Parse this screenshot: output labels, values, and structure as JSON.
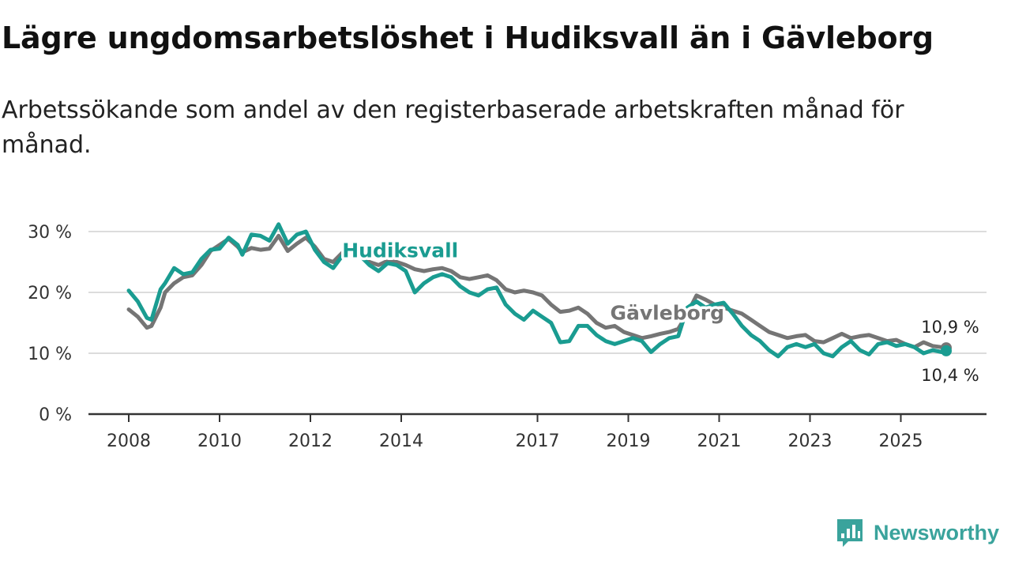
{
  "header": {
    "title": "Lägre ungdomsarbetslöshet i Hudiksvall än i Gävleborg",
    "subtitle": "Arbetssökande som andel av den registerbaserade arbetskraften månad för månad."
  },
  "brand": {
    "name": "Newsworthy",
    "color": "#3aa39c",
    "icon": "bar-chart-speech-bubble-icon"
  },
  "chart_data": {
    "type": "line",
    "title": "Lägre ungdomsarbetslöshet i Hudiksvall än i Gävleborg",
    "subtitle": "Arbetssökande som andel av den registerbaserade arbetskraften månad för månad.",
    "xlabel": "",
    "ylabel": "",
    "ylim": [
      0,
      30
    ],
    "yticks": [
      0,
      10,
      20,
      30
    ],
    "ytick_labels": [
      "0 %",
      "10 %",
      "20 %",
      "30 %"
    ],
    "xlim": [
      2008.0,
      2026.0
    ],
    "xticks": [
      2008,
      2010,
      2012,
      2014,
      2017,
      2019,
      2021,
      2023,
      2025
    ],
    "xtick_labels": [
      "2008",
      "2010",
      "2012",
      "2014",
      "2017",
      "2019",
      "2021",
      "2023",
      "2025"
    ],
    "grid": true,
    "legend": "inline",
    "series": [
      {
        "name": "Gävleborg",
        "color": "#757575",
        "label_at": [
          2018.6,
          15.5
        ],
        "x": [
          2008.0,
          2008.2,
          2008.4,
          2008.5,
          2008.7,
          2008.8,
          2009.0,
          2009.2,
          2009.4,
          2009.6,
          2009.8,
          2010.0,
          2010.2,
          2010.4,
          2010.5,
          2010.7,
          2010.9,
          2011.1,
          2011.3,
          2011.5,
          2011.7,
          2011.9,
          2012.1,
          2012.3,
          2012.5,
          2012.7,
          2012.9,
          2013.1,
          2013.3,
          2013.5,
          2013.7,
          2013.9,
          2014.1,
          2014.3,
          2014.5,
          2014.7,
          2014.9,
          2015.1,
          2015.3,
          2015.5,
          2015.7,
          2015.9,
          2016.1,
          2016.3,
          2016.5,
          2016.7,
          2016.9,
          2017.1,
          2017.3,
          2017.5,
          2017.7,
          2017.9,
          2018.1,
          2018.3,
          2018.5,
          2018.7,
          2018.9,
          2019.1,
          2019.3,
          2019.5,
          2019.7,
          2019.9,
          2020.1,
          2020.3,
          2020.5,
          2020.7,
          2020.9,
          2021.1,
          2021.3,
          2021.5,
          2021.7,
          2021.9,
          2022.1,
          2022.3,
          2022.5,
          2022.7,
          2022.9,
          2023.1,
          2023.3,
          2023.5,
          2023.7,
          2023.9,
          2024.1,
          2024.3,
          2024.5,
          2024.7,
          2024.9,
          2025.1,
          2025.3,
          2025.5,
          2025.7,
          2025.9,
          2026.0
        ],
        "values": [
          17.2,
          16.0,
          14.2,
          14.5,
          17.5,
          20.0,
          21.5,
          22.5,
          22.8,
          24.5,
          26.8,
          27.8,
          28.8,
          27.5,
          26.6,
          27.3,
          27.0,
          27.2,
          29.3,
          26.8,
          28.0,
          29.0,
          27.5,
          25.5,
          25.0,
          26.5,
          27.8,
          26.8,
          25.0,
          24.5,
          25.2,
          25.0,
          24.5,
          23.8,
          23.5,
          23.8,
          24.0,
          23.5,
          22.5,
          22.2,
          22.5,
          22.8,
          22.0,
          20.5,
          20.0,
          20.3,
          20.0,
          19.5,
          18.0,
          16.8,
          17.0,
          17.5,
          16.5,
          15.0,
          14.2,
          14.5,
          13.5,
          13.0,
          12.5,
          12.8,
          13.2,
          13.5,
          14.0,
          16.5,
          19.5,
          18.8,
          18.0,
          17.5,
          17.0,
          16.5,
          15.5,
          14.5,
          13.5,
          13.0,
          12.5,
          12.8,
          13.0,
          12.0,
          11.8,
          12.5,
          13.2,
          12.5,
          12.8,
          13.0,
          12.5,
          12.0,
          12.2,
          11.5,
          11.0,
          11.8,
          11.2,
          11.0,
          10.9
        ]
      },
      {
        "name": "Hudiksvall",
        "color": "#1a9c91",
        "label_at": [
          2012.7,
          25.8
        ],
        "x": [
          2008.0,
          2008.2,
          2008.4,
          2008.5,
          2008.7,
          2008.8,
          2009.0,
          2009.2,
          2009.4,
          2009.6,
          2009.8,
          2010.0,
          2010.2,
          2010.4,
          2010.5,
          2010.7,
          2010.9,
          2011.1,
          2011.3,
          2011.5,
          2011.7,
          2011.9,
          2012.1,
          2012.3,
          2012.5,
          2012.7,
          2012.9,
          2013.1,
          2013.3,
          2013.5,
          2013.7,
          2013.9,
          2014.1,
          2014.3,
          2014.5,
          2014.7,
          2014.9,
          2015.1,
          2015.3,
          2015.5,
          2015.7,
          2015.9,
          2016.1,
          2016.3,
          2016.5,
          2016.7,
          2016.9,
          2017.1,
          2017.3,
          2017.5,
          2017.7,
          2017.9,
          2018.1,
          2018.3,
          2018.5,
          2018.7,
          2018.9,
          2019.1,
          2019.3,
          2019.5,
          2019.7,
          2019.9,
          2020.1,
          2020.3,
          2020.5,
          2020.7,
          2020.9,
          2021.1,
          2021.3,
          2021.5,
          2021.7,
          2021.9,
          2022.1,
          2022.3,
          2022.5,
          2022.7,
          2022.9,
          2023.1,
          2023.3,
          2023.5,
          2023.7,
          2023.9,
          2024.1,
          2024.3,
          2024.5,
          2024.7,
          2024.9,
          2025.1,
          2025.3,
          2025.5,
          2025.7,
          2025.9,
          2026.0
        ],
        "values": [
          20.3,
          18.5,
          15.8,
          15.5,
          20.5,
          21.5,
          24.0,
          23.0,
          23.3,
          25.5,
          27.0,
          27.2,
          29.0,
          27.8,
          26.2,
          29.5,
          29.3,
          28.5,
          31.2,
          28.0,
          29.5,
          30.0,
          27.0,
          25.0,
          24.0,
          26.0,
          27.5,
          26.0,
          24.5,
          23.5,
          24.8,
          24.5,
          23.5,
          20.0,
          21.5,
          22.5,
          23.0,
          22.5,
          21.0,
          20.0,
          19.5,
          20.5,
          20.8,
          18.0,
          16.5,
          15.5,
          17.0,
          16.0,
          15.0,
          11.8,
          12.0,
          14.5,
          14.5,
          13.0,
          12.0,
          11.5,
          12.0,
          12.5,
          12.0,
          10.2,
          11.5,
          12.5,
          12.8,
          17.5,
          18.5,
          17.5,
          18.0,
          18.3,
          16.5,
          14.5,
          13.0,
          12.0,
          10.5,
          9.5,
          11.0,
          11.5,
          11.0,
          11.5,
          10.0,
          9.5,
          11.0,
          12.0,
          10.5,
          9.8,
          11.5,
          11.8,
          11.2,
          11.5,
          11.0,
          10.0,
          10.5,
          10.2,
          10.4
        ]
      }
    ],
    "end_labels": [
      {
        "series": "Gävleborg",
        "text": "10,9 %"
      },
      {
        "series": "Hudiksvall",
        "text": "10,4 %"
      }
    ]
  }
}
